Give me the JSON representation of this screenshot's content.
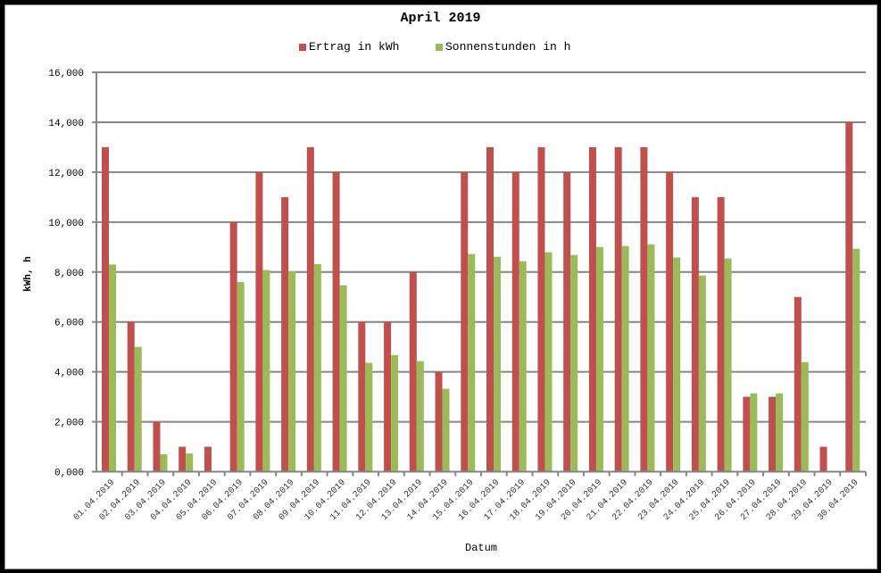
{
  "chart_data": {
    "type": "bar",
    "title": "April 2019",
    "xlabel": "Datum",
    "ylabel": "kWh, h",
    "ylim": [
      0,
      16
    ],
    "yticks": [
      "0,000",
      "2,000",
      "4,000",
      "6,000",
      "8,000",
      "10,000",
      "12,000",
      "14,000",
      "16,000"
    ],
    "grid": true,
    "legend_position": "top",
    "categories": [
      "01.04.2019",
      "02.04.2019",
      "03.04.2019",
      "04.04.2019",
      "05.04.2019",
      "06.04.2019",
      "07.04.2019",
      "08.04.2019",
      "09.04.2019",
      "10.04.2019",
      "11.04.2019",
      "12.04.2019",
      "13.04.2019",
      "14.04.2019",
      "15.04.2019",
      "16.04.2019",
      "17.04.2019",
      "18.04.2019",
      "19.04.2019",
      "20.04.2019",
      "21.04.2019",
      "22.04.2019",
      "23.04.2019",
      "24.04.2019",
      "25.04.2019",
      "26.04.2019",
      "27.04.2019",
      "28.04.2019",
      "29.04.2019",
      "30.04.2019"
    ],
    "series": [
      {
        "name": "Ertrag in kWh",
        "color": "#c0504d",
        "values": [
          13,
          6,
          2,
          1,
          1,
          10,
          12,
          11,
          13,
          12,
          6,
          6,
          8,
          4,
          12,
          13,
          12,
          13,
          12,
          13,
          13,
          13,
          12,
          11,
          11,
          3,
          3,
          7,
          1,
          14
        ]
      },
      {
        "name": "Sonnenstunden in h",
        "color": "#9bbb59",
        "values": [
          8.3,
          5.0,
          0.7,
          0.73,
          0,
          7.6,
          8.08,
          8.03,
          8.32,
          7.47,
          4.36,
          4.67,
          4.43,
          3.32,
          8.72,
          8.61,
          8.43,
          8.79,
          8.68,
          9.0,
          9.04,
          9.11,
          8.58,
          7.86,
          8.54,
          3.14,
          3.14,
          4.39,
          0,
          8.93
        ]
      }
    ]
  },
  "colors": {
    "gridline": "#868686",
    "axis": "#868686"
  }
}
